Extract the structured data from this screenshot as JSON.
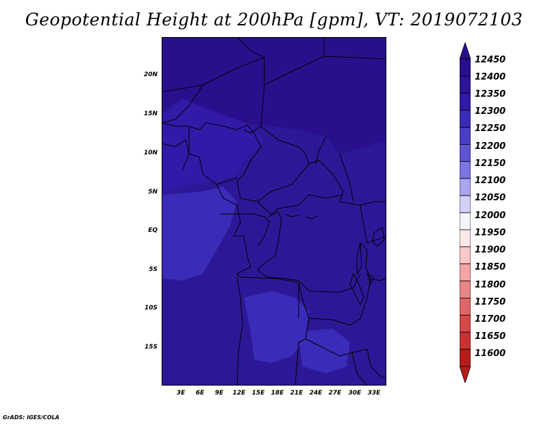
{
  "title": "Geopotential Height at 200hPa [gpm], VT: 2019072103",
  "credit": "GrADS: IGES/COLA",
  "map": {
    "lat_labels": [
      "20N",
      "15N",
      "10N",
      "5N",
      "EQ",
      "5S",
      "10S",
      "15S"
    ],
    "lon_labels": [
      "3E",
      "6E",
      "9E",
      "12E",
      "15E",
      "18E",
      "21E",
      "24E",
      "27E",
      "30E",
      "33E"
    ]
  },
  "colorbar": {
    "labels": [
      "12450",
      "12400",
      "12350",
      "12300",
      "12250",
      "12200",
      "12150",
      "12100",
      "12050",
      "12000",
      "11950",
      "11900",
      "11850",
      "11800",
      "11750",
      "11700",
      "11650",
      "11600"
    ],
    "colors": [
      "#2a0f8c",
      "#2d1498",
      "#3219a8",
      "#3a2bb8",
      "#4a3ec4",
      "#5d55d2",
      "#7c76e2",
      "#a9a5f0",
      "#d2d0f8",
      "#f4f4fd",
      "#fde8e8",
      "#fac8c8",
      "#f3a5a5",
      "#e88585",
      "#df6666",
      "#d44949",
      "#c83232",
      "#b51d1d"
    ]
  }
}
